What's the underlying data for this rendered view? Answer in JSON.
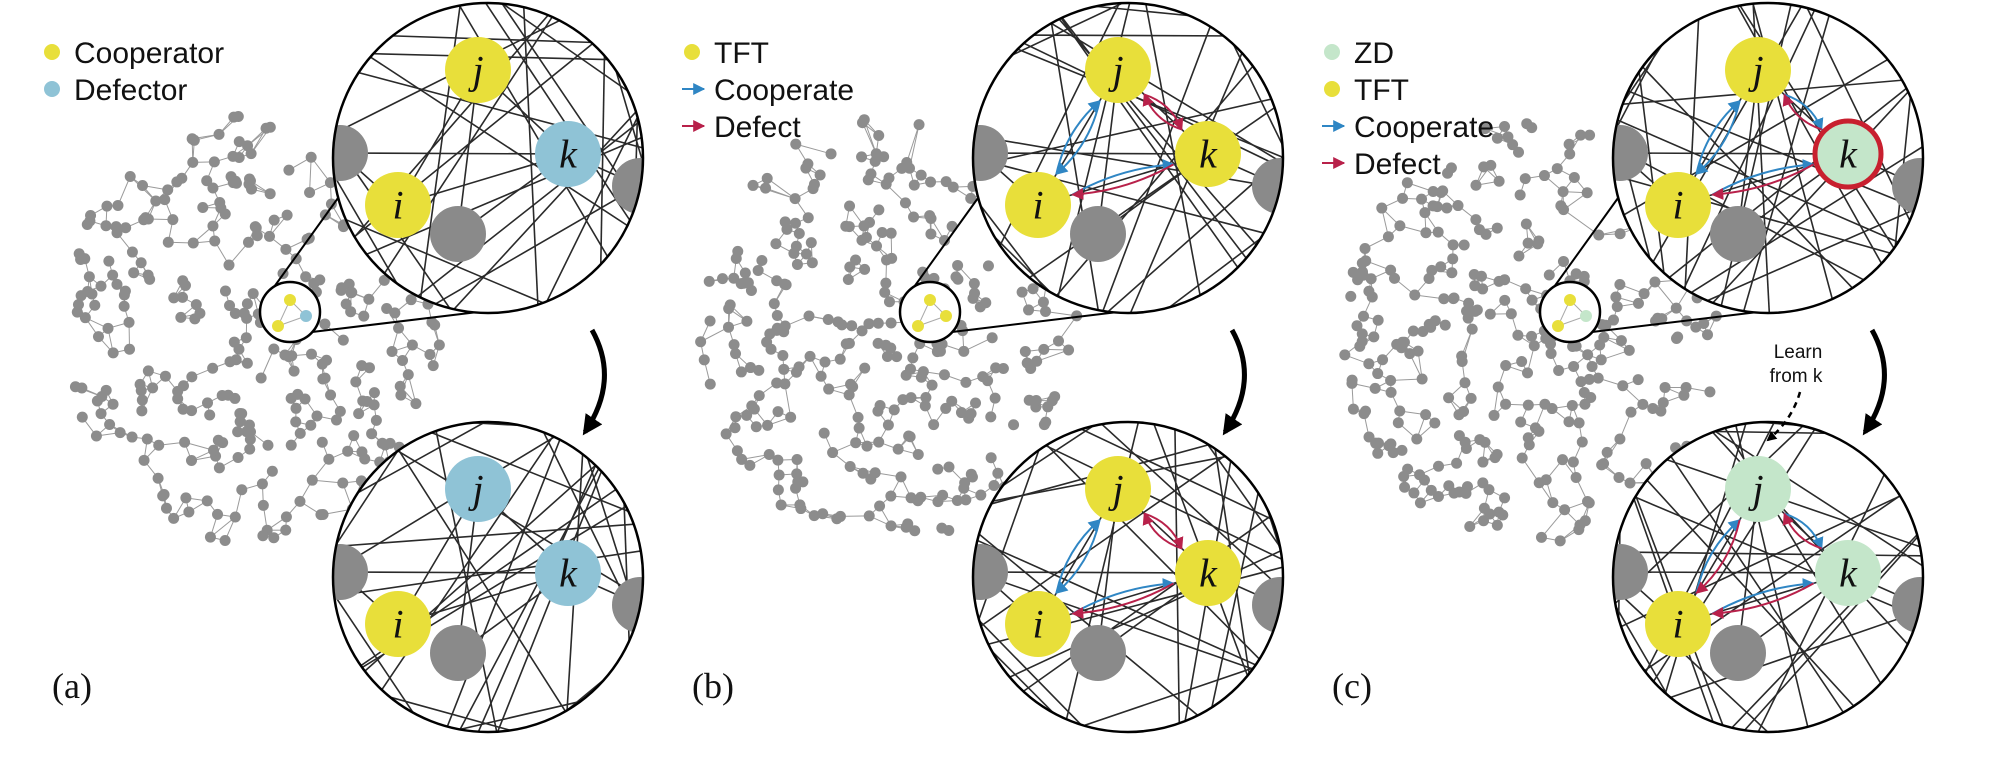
{
  "colors": {
    "cooperator": "#e8df3a",
    "defector": "#8fc3d6",
    "zd": "#c4e6ca",
    "network_node": "#8c8c8c",
    "network_edge": "#9a9a9a",
    "inset_node": "#8a8a8a",
    "inset_edge": "#2a2a2a",
    "cooperate_arrow": "#2f86c4",
    "defect_arrow": "#b8214a",
    "zd_highlight": "#c8202f"
  },
  "node_labels": {
    "i": "i",
    "j": "j",
    "k": "k"
  },
  "panels": [
    {
      "id": "a",
      "label": "(a)",
      "legend": [
        {
          "marker": "dot",
          "color_key": "cooperator",
          "text": "Cooperator"
        },
        {
          "marker": "dot",
          "color_key": "defector",
          "text": "Defector"
        }
      ],
      "top_states": {
        "i": "cooperator",
        "j": "cooperator",
        "k": "defector"
      },
      "bottom_states": {
        "i": "cooperator",
        "j": "defector",
        "k": "defector"
      },
      "arrows": false
    },
    {
      "id": "b",
      "label": "(b)",
      "legend": [
        {
          "marker": "dot",
          "color_key": "cooperator",
          "text": "TFT"
        },
        {
          "marker": "arrow",
          "color_key": "cooperate_arrow",
          "text": "Cooperate"
        },
        {
          "marker": "arrow",
          "color_key": "defect_arrow",
          "text": "Defect"
        }
      ],
      "top_states": {
        "i": "cooperator",
        "j": "cooperator",
        "k": "cooperator"
      },
      "bottom_states": {
        "i": "cooperator",
        "j": "cooperator",
        "k": "cooperator"
      },
      "arrows": true
    },
    {
      "id": "c",
      "label": "(c)",
      "legend": [
        {
          "marker": "dot",
          "color_key": "zd",
          "text": "ZD"
        },
        {
          "marker": "dot",
          "color_key": "cooperator",
          "text": "TFT"
        },
        {
          "marker": "arrow",
          "color_key": "cooperate_arrow",
          "text": "Cooperate"
        },
        {
          "marker": "arrow",
          "color_key": "defect_arrow",
          "text": "Defect"
        }
      ],
      "top_states": {
        "i": "cooperator",
        "j": "cooperator",
        "k": "zd"
      },
      "bottom_states": {
        "i": "cooperator",
        "j": "zd",
        "k": "zd"
      },
      "highlight_top": "k",
      "learn_annotation": [
        "Learn",
        "from k"
      ],
      "arrows": true
    }
  ]
}
